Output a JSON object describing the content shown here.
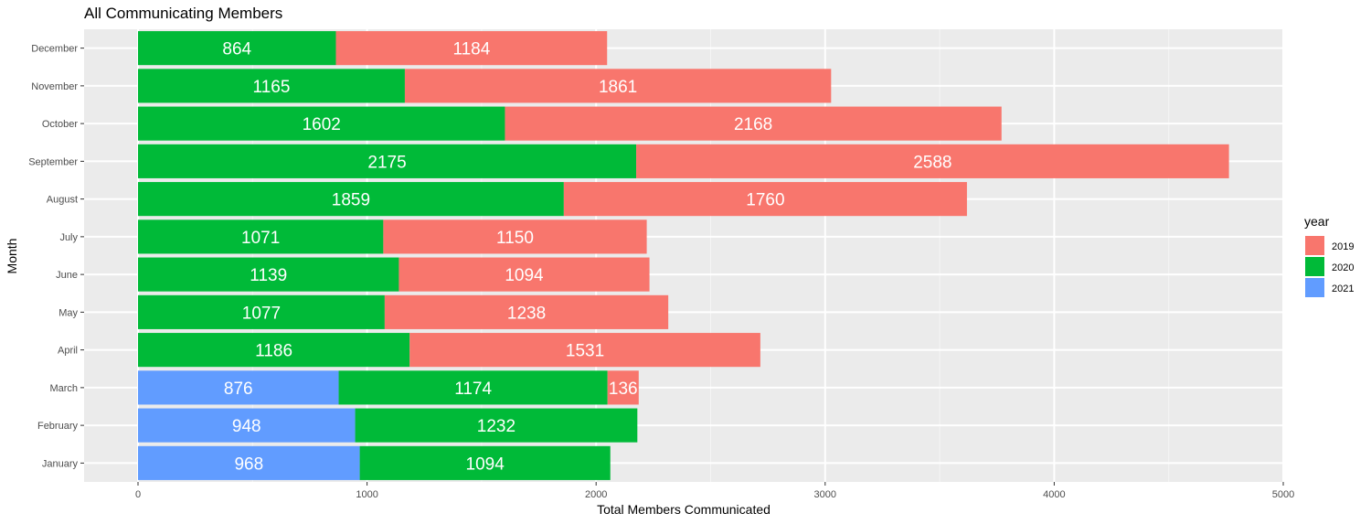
{
  "chart_data": {
    "type": "bar",
    "orientation": "horizontal",
    "stacked": true,
    "title": "All Communicating Members",
    "xlabel": "Total Members Communicated",
    "ylabel": "Month",
    "xlim": [
      0,
      5000
    ],
    "x_ticks": [
      0,
      1000,
      2000,
      3000,
      4000,
      5000
    ],
    "grid": true,
    "legend": {
      "title": "year",
      "placement": "right"
    },
    "categories": [
      "January",
      "February",
      "March",
      "April",
      "May",
      "June",
      "July",
      "August",
      "September",
      "October",
      "November",
      "December"
    ],
    "stack_order": [
      "2021",
      "2020",
      "2019"
    ],
    "series": [
      {
        "name": "2019",
        "color": "#F8766D",
        "values": [
          0,
          0,
          136,
          1531,
          1238,
          1094,
          1150,
          1760,
          2588,
          2168,
          1861,
          1184
        ]
      },
      {
        "name": "2020",
        "color": "#00BA38",
        "values": [
          1094,
          1232,
          1174,
          1186,
          1077,
          1139,
          1071,
          1859,
          2175,
          1602,
          1165,
          864
        ]
      },
      {
        "name": "2021",
        "color": "#619CFF",
        "values": [
          968,
          948,
          876,
          0,
          0,
          0,
          0,
          0,
          0,
          0,
          0,
          0
        ]
      }
    ]
  }
}
